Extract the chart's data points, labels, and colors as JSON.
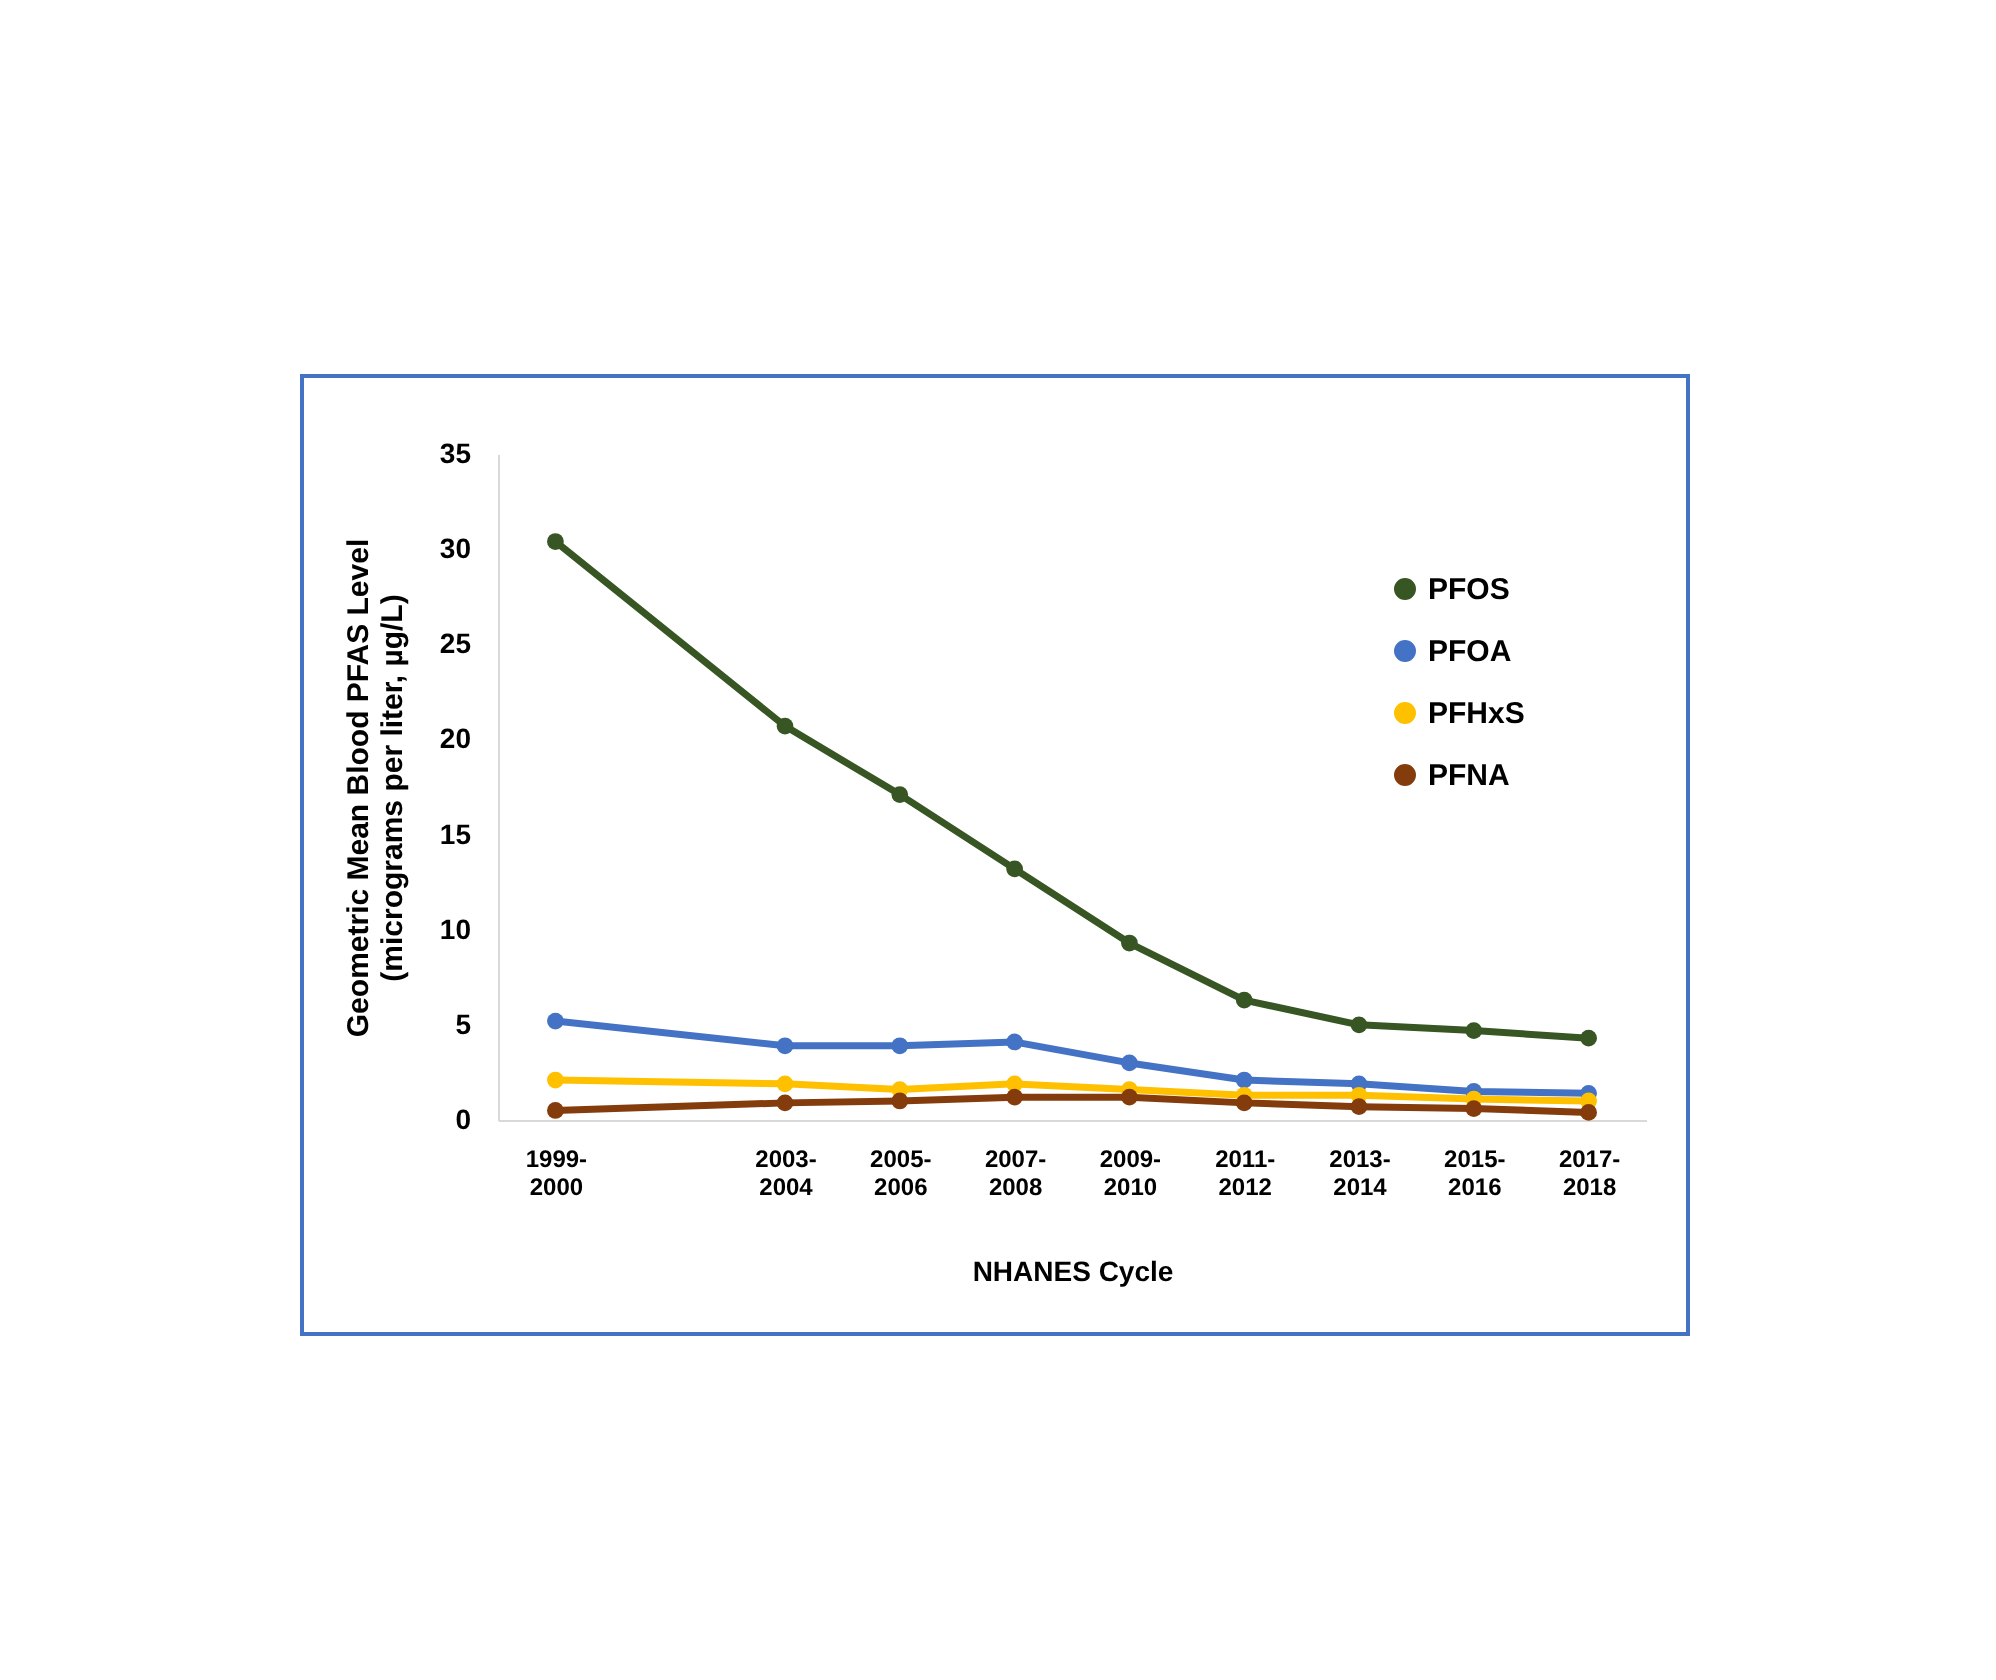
{
  "chart_data": {
    "type": "line",
    "xlabel": "NHANES Cycle",
    "ylabel": "Geometric Mean Blood PFAS Level\n(micrograms per liter, µg/L)",
    "categories": [
      "1999-2000",
      null,
      "2003-2004",
      "2005-2006",
      "2007-2008",
      "2009-2010",
      "2011-2012",
      "2013-2014",
      "2015-2016",
      "2017-2018"
    ],
    "ylim": [
      0,
      35
    ],
    "yticks": [
      0,
      5,
      10,
      15,
      20,
      25,
      30,
      35
    ],
    "series": [
      {
        "name": "PFOS",
        "color": "#375623",
        "values": [
          30.4,
          null,
          20.7,
          17.1,
          13.2,
          9.3,
          6.3,
          5.0,
          4.7,
          4.3
        ]
      },
      {
        "name": "PFOA",
        "color": "#4472c4",
        "values": [
          5.2,
          null,
          3.9,
          3.9,
          4.1,
          3.0,
          2.1,
          1.9,
          1.5,
          1.4
        ]
      },
      {
        "name": "PFHxS",
        "color": "#ffc000",
        "values": [
          2.1,
          null,
          1.9,
          1.6,
          1.9,
          1.6,
          1.3,
          1.3,
          1.1,
          1.0
        ]
      },
      {
        "name": "PFNA",
        "color": "#843c0c",
        "values": [
          0.5,
          null,
          0.9,
          1.0,
          1.2,
          1.2,
          0.9,
          0.7,
          0.6,
          0.4
        ]
      }
    ],
    "grid": false,
    "legend": "top right",
    "marker": "circle",
    "line_style": "solid"
  }
}
